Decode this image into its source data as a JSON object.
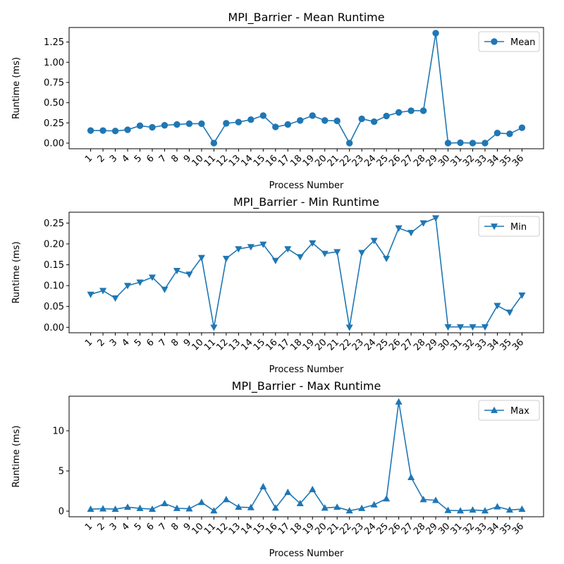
{
  "chart_data": [
    {
      "type": "line",
      "title": "MPI_Barrier - Mean Runtime",
      "xlabel": "Process Number",
      "ylabel": "Runtime (ms)",
      "ylim": [
        -0.07,
        1.43
      ],
      "yticks": [
        0.0,
        0.25,
        0.5,
        0.75,
        1.0,
        1.25
      ],
      "ytick_labels": [
        "0.00",
        "0.25",
        "0.50",
        "0.75",
        "1.00",
        "1.25"
      ],
      "categories": [
        "1",
        "2",
        "3",
        "4",
        "5",
        "6",
        "7",
        "8",
        "9",
        "10",
        "11",
        "12",
        "13",
        "14",
        "15",
        "16",
        "17",
        "18",
        "19",
        "20",
        "21",
        "22",
        "23",
        "24",
        "25",
        "26",
        "27",
        "28",
        "29",
        "30",
        "31",
        "32",
        "33",
        "34",
        "35",
        "36"
      ],
      "series": [
        {
          "name": "Mean",
          "marker": "circle",
          "values": [
            0.155,
            0.155,
            0.15,
            0.165,
            0.215,
            0.195,
            0.22,
            0.23,
            0.24,
            0.24,
            0.0,
            0.245,
            0.26,
            0.29,
            0.34,
            0.2,
            0.23,
            0.28,
            0.34,
            0.28,
            0.275,
            0.0,
            0.3,
            0.265,
            0.335,
            0.38,
            0.4,
            0.4,
            1.36,
            0.0,
            0.005,
            0.0,
            0.0,
            0.125,
            0.115,
            0.19
          ]
        }
      ],
      "legend": "upper right",
      "grid": false,
      "color": "#1f77b4"
    },
    {
      "type": "line",
      "title": "MPI_Barrier - Min Runtime",
      "xlabel": "Process Number",
      "ylabel": "Runtime (ms)",
      "ylim": [
        -0.013,
        0.276
      ],
      "yticks": [
        0.0,
        0.05,
        0.1,
        0.15,
        0.2,
        0.25
      ],
      "ytick_labels": [
        "0.00",
        "0.05",
        "0.10",
        "0.15",
        "0.20",
        "0.25"
      ],
      "categories": [
        "1",
        "2",
        "3",
        "4",
        "5",
        "6",
        "7",
        "8",
        "9",
        "10",
        "11",
        "12",
        "13",
        "14",
        "15",
        "16",
        "17",
        "18",
        "19",
        "20",
        "21",
        "22",
        "23",
        "24",
        "25",
        "26",
        "27",
        "28",
        "29",
        "30",
        "31",
        "32",
        "33",
        "34",
        "35",
        "36"
      ],
      "series": [
        {
          "name": "Min",
          "marker": "triangle-down",
          "values": [
            0.079,
            0.088,
            0.07,
            0.1,
            0.108,
            0.12,
            0.091,
            0.136,
            0.127,
            0.167,
            0.0,
            0.165,
            0.188,
            0.193,
            0.199,
            0.16,
            0.188,
            0.169,
            0.202,
            0.177,
            0.181,
            0.0,
            0.179,
            0.208,
            0.165,
            0.238,
            0.227,
            0.25,
            0.262,
            0.001,
            0.001,
            0.001,
            0.001,
            0.052,
            0.036,
            0.077
          ]
        }
      ],
      "legend": "upper right",
      "grid": false,
      "color": "#1f77b4"
    },
    {
      "type": "line",
      "title": "MPI_Barrier - Max Runtime",
      "xlabel": "Process Number",
      "ylabel": "Runtime (ms)",
      "ylim": [
        -0.7,
        14.3
      ],
      "yticks": [
        0,
        5,
        10
      ],
      "ytick_labels": [
        "0",
        "5",
        "10"
      ],
      "categories": [
        "1",
        "2",
        "3",
        "4",
        "5",
        "6",
        "7",
        "8",
        "9",
        "10",
        "11",
        "12",
        "13",
        "14",
        "15",
        "16",
        "17",
        "18",
        "19",
        "20",
        "21",
        "22",
        "23",
        "24",
        "25",
        "26",
        "27",
        "28",
        "29",
        "30",
        "31",
        "32",
        "33",
        "34",
        "35",
        "36"
      ],
      "series": [
        {
          "name": "Max",
          "marker": "triangle-up",
          "values": [
            0.25,
            0.3,
            0.25,
            0.5,
            0.35,
            0.25,
            0.95,
            0.35,
            0.3,
            1.1,
            0.05,
            1.45,
            0.5,
            0.45,
            3.05,
            0.4,
            2.35,
            0.95,
            2.7,
            0.4,
            0.5,
            0.05,
            0.35,
            0.8,
            1.55,
            13.6,
            4.2,
            1.45,
            1.35,
            0.1,
            0.05,
            0.15,
            0.05,
            0.55,
            0.15,
            0.25
          ]
        }
      ],
      "legend": "upper right",
      "grid": false,
      "color": "#1f77b4"
    }
  ]
}
